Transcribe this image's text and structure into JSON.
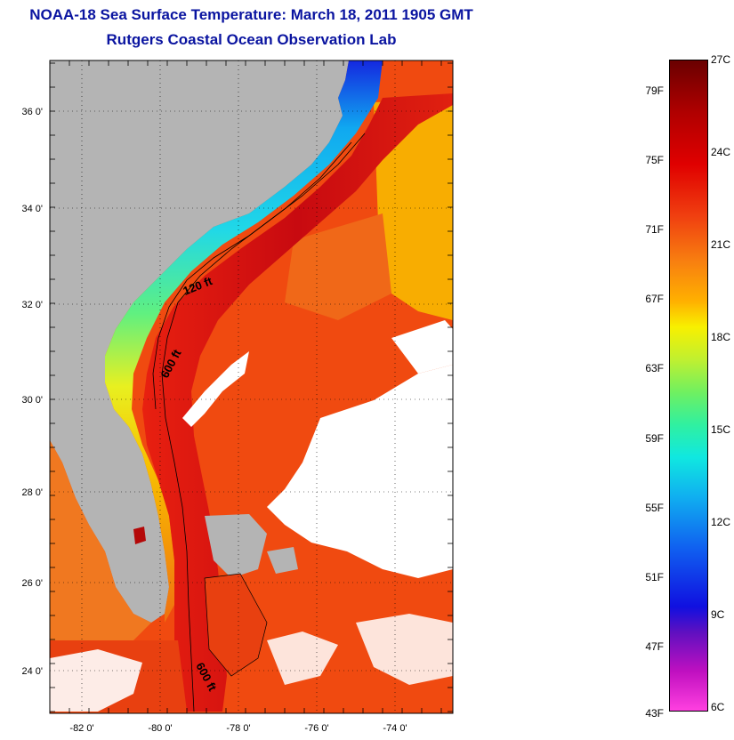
{
  "title": "NOAA-18 Sea Surface Temperature:  March 18, 2011 1905 GMT",
  "subtitle": "Rutgers Coastal Ocean Observation Lab",
  "map": {
    "lon_ticks": [
      "-82 0'",
      "-80 0'",
      "-78 0'",
      "-76 0'",
      "-74 0'"
    ],
    "lat_ticks": [
      "36 0'",
      "34 0'",
      "32 0'",
      "30 0'",
      "28 0'",
      "26 0'",
      "24 0'"
    ],
    "contour_labels": [
      "120 ft",
      "600 ft",
      "600 ft"
    ],
    "colors": {
      "land": "#b4b4b4",
      "cloud": "#ffffff",
      "gulf_stream": "#d81010",
      "open_ocean": "#f04a10",
      "warm_shelf": "#f8c800",
      "cool_shelf": "#20d0f0",
      "cold_shelf": "#1020e0"
    }
  },
  "colorbar": {
    "fahrenheit": [
      "79F",
      "75F",
      "71F",
      "67F",
      "63F",
      "59F",
      "55F",
      "51F",
      "47F",
      "43F"
    ],
    "celsius": [
      "27C",
      "24C",
      "21C",
      "18C",
      "15C",
      "12C",
      "9C",
      "6C"
    ],
    "min_c": 6,
    "max_c": 27,
    "min_f": 43,
    "max_f": 79
  }
}
